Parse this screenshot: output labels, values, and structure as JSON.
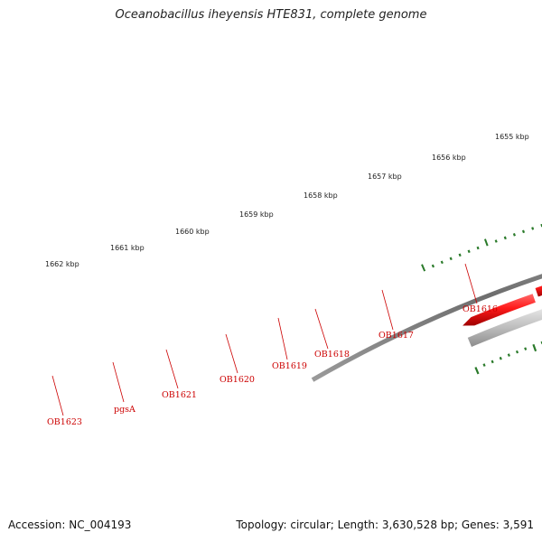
{
  "title": "Oceanobacillus iheyensis HTE831, complete genome",
  "footer": {
    "accession": "Accession: NC_004193",
    "topology": "Topology: circular; Length: 3,630,528 bp; Genes: 3,591"
  },
  "colors": {
    "backbone": "#7a7a7a",
    "ticks": "#2a7a2a",
    "gene_red": "#e60000",
    "gene_blue": "#6655cc",
    "gene_darkblue": "#1a1a88",
    "gene_gray": "#bdbdbd",
    "gene_darkgray": "#5c5c5c",
    "gene_orange": "#ff9a1a",
    "label_red": "#cc0000"
  },
  "scale": {
    "kbp_labels": [
      "1655 kbp",
      "1656 kbp",
      "1657 kbp",
      "1658 kbp",
      "1659 kbp",
      "1660 kbp",
      "1661 kbp",
      "1662 kbp"
    ]
  },
  "genes": [
    {
      "label": "OB1616"
    },
    {
      "label": "OB1617"
    },
    {
      "label": "OB1618"
    },
    {
      "label": "OB1619"
    },
    {
      "label": "OB1620"
    },
    {
      "label": "OB1621"
    },
    {
      "label": "pgsA"
    },
    {
      "label": "OB1623"
    }
  ]
}
